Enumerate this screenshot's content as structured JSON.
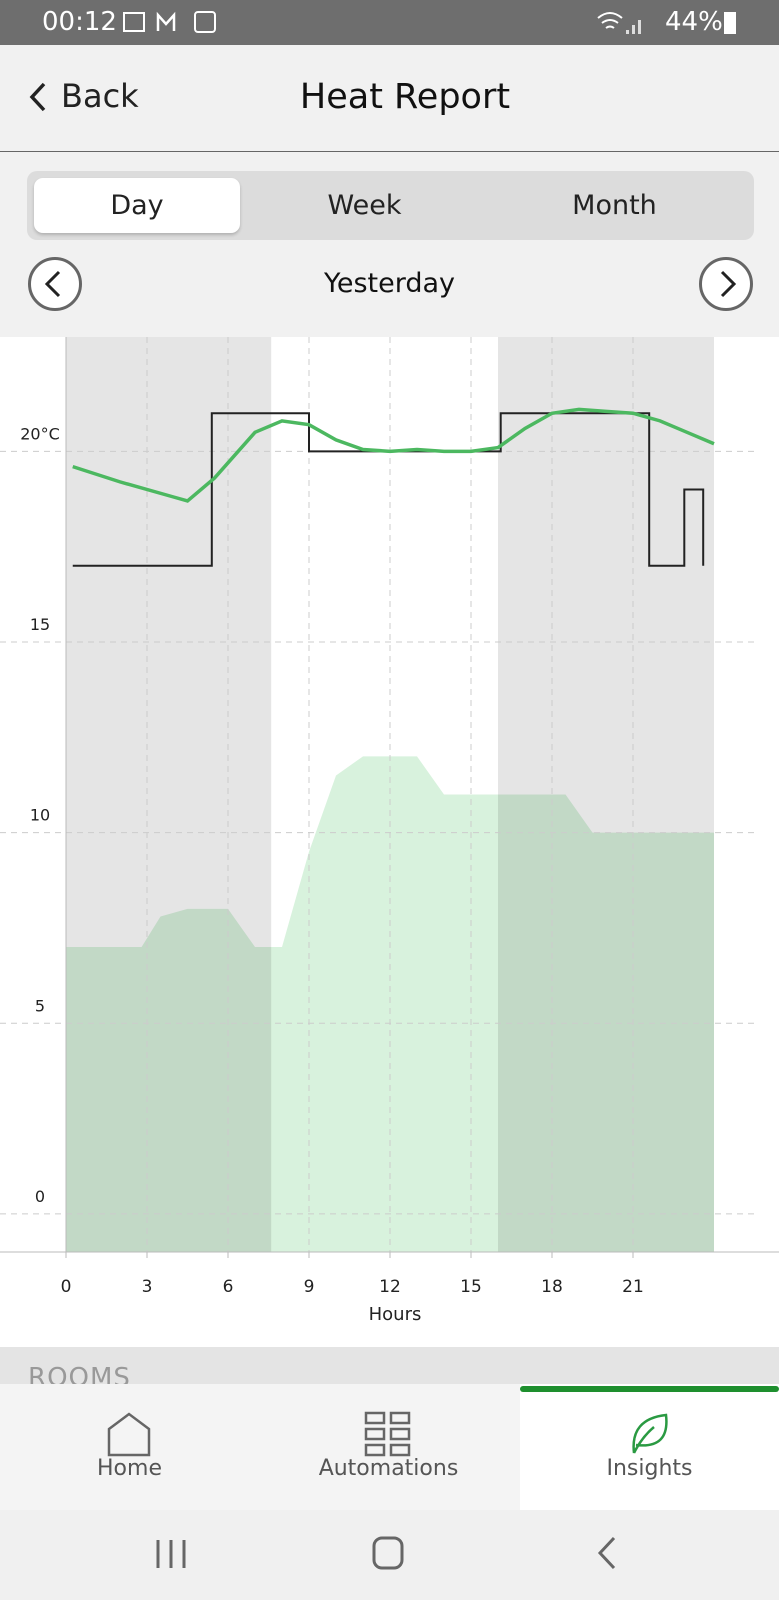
{
  "status_bar": {
    "time": "00:12",
    "battery": "44%"
  },
  "header": {
    "back": "Back",
    "title": "Heat Report"
  },
  "tabs": [
    "Day",
    "Week",
    "Month"
  ],
  "period": "Yesterday",
  "chart_data": {
    "type": "line",
    "x_label": "Hours",
    "xlim": [
      0,
      24
    ],
    "ylim": [
      -1,
      23
    ],
    "xticks": [
      0,
      3,
      6,
      9,
      12,
      15,
      18,
      21
    ],
    "yticks": [
      0,
      5,
      10,
      15,
      {
        "value": 20,
        "label": "20°C"
      }
    ],
    "grid": true,
    "bands": [
      [
        0,
        7.6
      ],
      [
        16,
        24
      ]
    ],
    "band_color": "rgba(0,0,0,0.1)",
    "series": [
      {
        "color": "#d8f2dd",
        "fill": true,
        "x": [
          0,
          2.8,
          3.5,
          4.5,
          6,
          6.5,
          7,
          8,
          9,
          10,
          11,
          13,
          14,
          16,
          18.5,
          19.5,
          24
        ],
        "values": [
          7,
          7,
          7.8,
          8,
          8,
          7.5,
          7,
          7,
          9.5,
          11.5,
          12,
          12,
          11,
          11,
          11,
          10,
          10
        ]
      },
      {
        "color": "#222222",
        "x": [
          0.25,
          5.4,
          5.4,
          9,
          9,
          16.1,
          16.1,
          21.6,
          21.6,
          22.9,
          22.9,
          23.6,
          23.6
        ],
        "values": [
          17,
          17,
          21,
          21,
          20,
          20,
          21,
          21,
          17,
          17,
          19,
          19,
          17
        ]
      },
      {
        "color": "#4cb860",
        "x": [
          0.25,
          2,
          4,
          4.5,
          5.5,
          7,
          8,
          9,
          10,
          11,
          12,
          13,
          14,
          15,
          16,
          17,
          18,
          19,
          20,
          21,
          22,
          23,
          24
        ],
        "values": [
          19.6,
          19.2,
          18.8,
          18.7,
          19.3,
          20.5,
          20.8,
          20.7,
          20.3,
          20.05,
          20,
          20.05,
          20,
          20,
          20.1,
          20.6,
          21,
          21.1,
          21.05,
          21,
          20.8,
          20.5,
          20.2
        ]
      }
    ]
  },
  "section": "ROOMS",
  "nav": [
    "Home",
    "Automations",
    "Insights"
  ]
}
